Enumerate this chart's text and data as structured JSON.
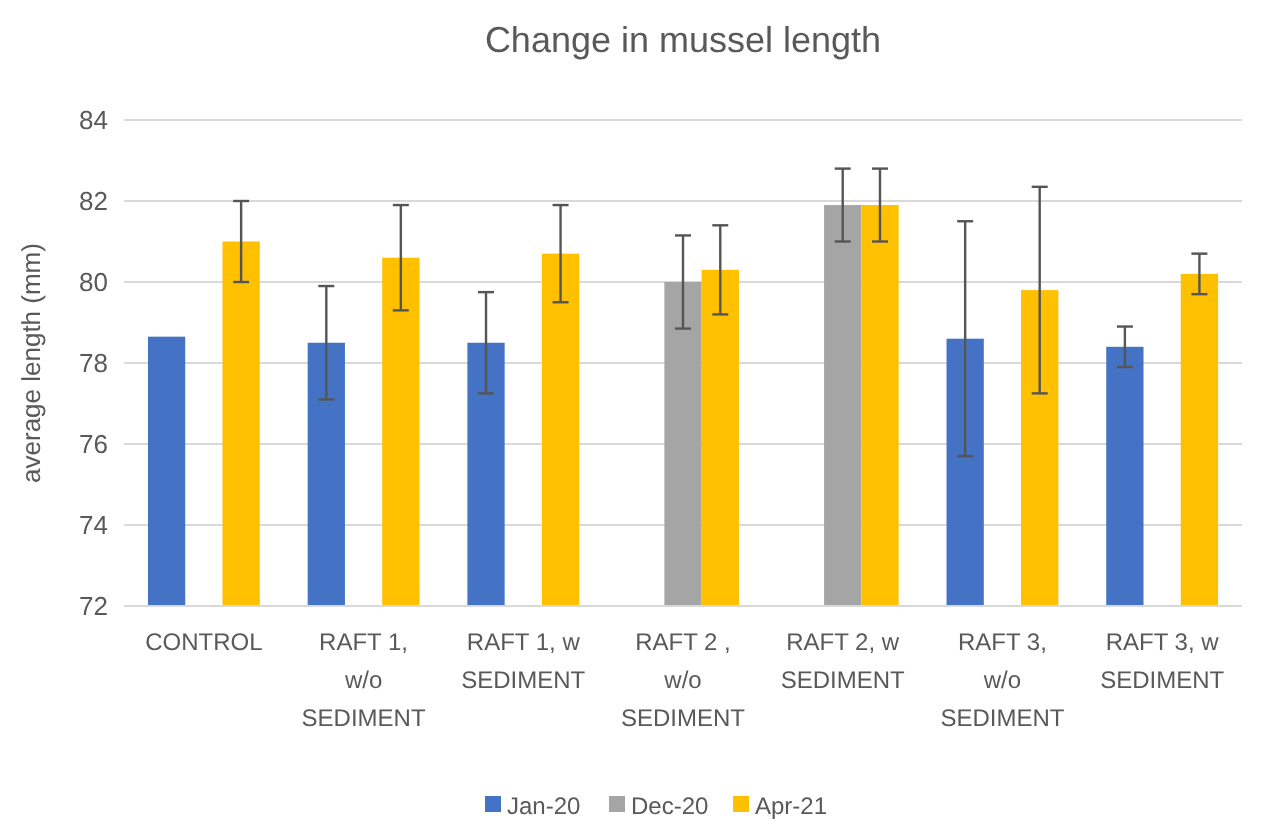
{
  "chart_data": {
    "type": "bar",
    "title": "Change in mussel length",
    "ylabel": "average length (mm)",
    "categories": [
      "CONTROL",
      "RAFT 1, w/o SEDIMENT",
      "RAFT 1, w SEDIMENT",
      "RAFT 2 , w/o SEDIMENT",
      "RAFT 2, w SEDIMENT",
      "RAFT 3, w/o SEDIMENT",
      "RAFT 3, w SEDIMENT"
    ],
    "series": [
      {
        "name": "Jan-20",
        "color": "#4472c4",
        "values": [
          78.65,
          78.5,
          78.5,
          null,
          null,
          78.6,
          78.4
        ],
        "errors": [
          null,
          1.4,
          1.25,
          null,
          null,
          2.9,
          0.5
        ]
      },
      {
        "name": "Dec-20",
        "color": "#a5a5a5",
        "values": [
          null,
          null,
          null,
          80.0,
          81.9,
          null,
          null
        ],
        "errors": [
          null,
          null,
          null,
          1.15,
          0.9,
          null,
          null
        ]
      },
      {
        "name": "Apr-21",
        "color": "#ffc000",
        "values": [
          81.0,
          80.6,
          80.7,
          80.3,
          81.9,
          79.8,
          80.2
        ],
        "errors": [
          1.0,
          1.3,
          1.2,
          1.1,
          0.9,
          2.55,
          0.5
        ]
      }
    ],
    "ylim": [
      72,
      84
    ],
    "yticks": [
      72,
      74,
      76,
      78,
      80,
      82,
      84
    ],
    "grid": "y",
    "legend": "bottom"
  }
}
